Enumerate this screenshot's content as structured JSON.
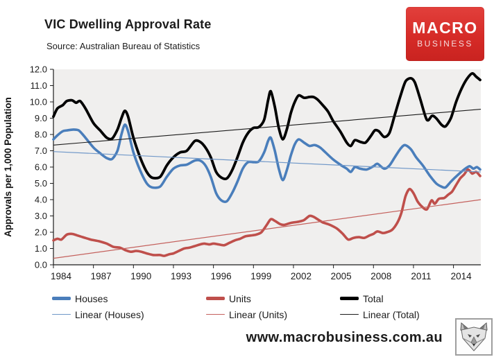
{
  "header": {
    "title": "VIC Dwelling Approval Rate",
    "source": "Source: Australian Bureau of Statistics"
  },
  "brand": {
    "line1": "MACRO",
    "line2": "BUSINESS",
    "background_color": "#d62b27",
    "text_color": "#ffffff"
  },
  "footer": {
    "url": "www.macrobusiness.com.au",
    "logo": "fox-head-logo"
  },
  "chart_data": {
    "type": "line",
    "title": "VIC Dwelling Approval Rate",
    "subtitle": "Source: Australian Bureau of Statistics",
    "xlabel": "",
    "ylabel": "Approvals per 1,000 Population",
    "ylim": [
      0,
      12
    ],
    "xlim": [
      1984,
      2016.05
    ],
    "grid": false,
    "plot_background": "#f0efee",
    "axis_color": "#1b1b1b",
    "legend_position": "bottom",
    "y_tick_labels": [
      "12.0",
      "11.0",
      "10.0",
      "9.0",
      "8.0",
      "7.0",
      "6.0",
      "5.0",
      "4.0",
      "3.0",
      "2.0",
      "1.0",
      "0.0"
    ],
    "x_tick_years": [
      1984,
      1987,
      1990,
      1993,
      1996,
      1999,
      2002,
      2005,
      2008,
      2011,
      2014
    ],
    "x_tick_labels": [
      "1984",
      "1987",
      "1990",
      "1993",
      "1996",
      "1999",
      "2002",
      "2005",
      "2008",
      "2011",
      "2014"
    ],
    "series": [
      {
        "name": "Houses",
        "color": "#4a7ebb",
        "width": 3.6,
        "points": [
          [
            1984.0,
            7.7
          ],
          [
            1984.3,
            7.95
          ],
          [
            1984.7,
            8.2
          ],
          [
            1985.0,
            8.25
          ],
          [
            1985.5,
            8.3
          ],
          [
            1985.9,
            8.25
          ],
          [
            1986.3,
            7.9
          ],
          [
            1987.0,
            7.2
          ],
          [
            1987.5,
            6.85
          ],
          [
            1988.0,
            6.55
          ],
          [
            1988.4,
            6.5
          ],
          [
            1988.8,
            7.0
          ],
          [
            1989.1,
            8.0
          ],
          [
            1989.35,
            8.6
          ],
          [
            1989.6,
            8.2
          ],
          [
            1990.0,
            6.9
          ],
          [
            1990.5,
            5.8
          ],
          [
            1991.0,
            5.0
          ],
          [
            1991.4,
            4.75
          ],
          [
            1992.0,
            4.8
          ],
          [
            1992.5,
            5.4
          ],
          [
            1993.0,
            5.9
          ],
          [
            1993.5,
            6.1
          ],
          [
            1994.0,
            6.15
          ],
          [
            1994.6,
            6.4
          ],
          [
            1995.0,
            6.4
          ],
          [
            1995.4,
            6.1
          ],
          [
            1995.8,
            5.4
          ],
          [
            1996.2,
            4.4
          ],
          [
            1996.6,
            3.95
          ],
          [
            1997.0,
            3.9
          ],
          [
            1997.4,
            4.4
          ],
          [
            1997.8,
            5.1
          ],
          [
            1998.2,
            5.9
          ],
          [
            1998.6,
            6.3
          ],
          [
            1999.0,
            6.3
          ],
          [
            1999.4,
            6.35
          ],
          [
            1999.8,
            6.9
          ],
          [
            2000.1,
            7.6
          ],
          [
            2000.3,
            7.8
          ],
          [
            2000.6,
            7.0
          ],
          [
            2000.9,
            5.9
          ],
          [
            2001.2,
            5.2
          ],
          [
            2001.5,
            5.8
          ],
          [
            2001.8,
            6.7
          ],
          [
            2002.1,
            7.4
          ],
          [
            2002.4,
            7.7
          ],
          [
            2002.8,
            7.5
          ],
          [
            2003.2,
            7.3
          ],
          [
            2003.6,
            7.35
          ],
          [
            2004.0,
            7.2
          ],
          [
            2004.4,
            6.9
          ],
          [
            2005.0,
            6.45
          ],
          [
            2005.6,
            6.1
          ],
          [
            2006.0,
            5.9
          ],
          [
            2006.3,
            5.7
          ],
          [
            2006.6,
            6.0
          ],
          [
            2007.0,
            5.9
          ],
          [
            2007.5,
            5.85
          ],
          [
            2008.0,
            6.05
          ],
          [
            2008.3,
            6.2
          ],
          [
            2008.8,
            5.9
          ],
          [
            2009.2,
            6.1
          ],
          [
            2009.6,
            6.6
          ],
          [
            2010.0,
            7.1
          ],
          [
            2010.35,
            7.35
          ],
          [
            2010.8,
            7.1
          ],
          [
            2011.2,
            6.6
          ],
          [
            2011.7,
            6.1
          ],
          [
            2012.2,
            5.5
          ],
          [
            2012.7,
            5.0
          ],
          [
            2013.1,
            4.8
          ],
          [
            2013.4,
            4.75
          ],
          [
            2013.8,
            5.1
          ],
          [
            2014.3,
            5.5
          ],
          [
            2014.8,
            5.85
          ],
          [
            2015.2,
            6.05
          ],
          [
            2015.5,
            5.9
          ],
          [
            2015.75,
            6.0
          ],
          [
            2016.0,
            5.85
          ]
        ]
      },
      {
        "name": "Units",
        "color": "#bf4f4b",
        "width": 3.6,
        "points": [
          [
            1984.0,
            1.5
          ],
          [
            1984.3,
            1.6
          ],
          [
            1984.6,
            1.55
          ],
          [
            1985.0,
            1.85
          ],
          [
            1985.4,
            1.9
          ],
          [
            1985.8,
            1.8
          ],
          [
            1986.2,
            1.7
          ],
          [
            1986.8,
            1.55
          ],
          [
            1987.4,
            1.45
          ],
          [
            1988.0,
            1.3
          ],
          [
            1988.5,
            1.1
          ],
          [
            1989.0,
            1.05
          ],
          [
            1989.4,
            0.9
          ],
          [
            1989.8,
            0.8
          ],
          [
            1990.2,
            0.85
          ],
          [
            1990.6,
            0.8
          ],
          [
            1991.0,
            0.7
          ],
          [
            1991.5,
            0.6
          ],
          [
            1992.0,
            0.6
          ],
          [
            1992.3,
            0.55
          ],
          [
            1992.7,
            0.65
          ],
          [
            1993.0,
            0.7
          ],
          [
            1993.4,
            0.85
          ],
          [
            1993.8,
            1.0
          ],
          [
            1994.2,
            1.05
          ],
          [
            1994.6,
            1.15
          ],
          [
            1995.0,
            1.25
          ],
          [
            1995.3,
            1.3
          ],
          [
            1995.7,
            1.25
          ],
          [
            1996.0,
            1.3
          ],
          [
            1996.4,
            1.25
          ],
          [
            1996.8,
            1.2
          ],
          [
            1997.2,
            1.35
          ],
          [
            1997.6,
            1.5
          ],
          [
            1998.0,
            1.6
          ],
          [
            1998.4,
            1.75
          ],
          [
            1998.8,
            1.8
          ],
          [
            1999.2,
            1.85
          ],
          [
            1999.6,
            2.0
          ],
          [
            2000.0,
            2.45
          ],
          [
            2000.3,
            2.8
          ],
          [
            2000.6,
            2.7
          ],
          [
            2001.0,
            2.5
          ],
          [
            2001.3,
            2.45
          ],
          [
            2001.7,
            2.55
          ],
          [
            2002.0,
            2.6
          ],
          [
            2002.4,
            2.65
          ],
          [
            2002.8,
            2.75
          ],
          [
            2003.2,
            3.0
          ],
          [
            2003.5,
            2.95
          ],
          [
            2003.8,
            2.8
          ],
          [
            2004.2,
            2.6
          ],
          [
            2004.6,
            2.5
          ],
          [
            2005.0,
            2.35
          ],
          [
            2005.3,
            2.2
          ],
          [
            2005.7,
            1.9
          ],
          [
            2006.1,
            1.55
          ],
          [
            2006.5,
            1.65
          ],
          [
            2006.9,
            1.7
          ],
          [
            2007.3,
            1.65
          ],
          [
            2007.7,
            1.8
          ],
          [
            2008.0,
            1.9
          ],
          [
            2008.3,
            2.05
          ],
          [
            2008.7,
            1.95
          ],
          [
            2009.0,
            2.0
          ],
          [
            2009.4,
            2.15
          ],
          [
            2009.8,
            2.6
          ],
          [
            2010.1,
            3.2
          ],
          [
            2010.4,
            4.2
          ],
          [
            2010.7,
            4.65
          ],
          [
            2011.0,
            4.4
          ],
          [
            2011.3,
            3.9
          ],
          [
            2011.6,
            3.6
          ],
          [
            2012.0,
            3.4
          ],
          [
            2012.35,
            3.95
          ],
          [
            2012.6,
            3.75
          ],
          [
            2012.9,
            4.05
          ],
          [
            2013.3,
            4.1
          ],
          [
            2013.6,
            4.3
          ],
          [
            2013.9,
            4.5
          ],
          [
            2014.2,
            4.9
          ],
          [
            2014.5,
            5.3
          ],
          [
            2014.8,
            5.55
          ],
          [
            2015.1,
            5.85
          ],
          [
            2015.4,
            5.6
          ],
          [
            2015.7,
            5.7
          ],
          [
            2016.0,
            5.45
          ]
        ]
      },
      {
        "name": "Total",
        "color": "#000000",
        "width": 3.8,
        "points": [
          [
            1984.0,
            9.1
          ],
          [
            1984.3,
            9.6
          ],
          [
            1984.7,
            9.8
          ],
          [
            1985.0,
            10.05
          ],
          [
            1985.4,
            10.1
          ],
          [
            1985.7,
            9.95
          ],
          [
            1986.0,
            10.05
          ],
          [
            1986.4,
            9.6
          ],
          [
            1987.0,
            8.7
          ],
          [
            1987.5,
            8.25
          ],
          [
            1988.0,
            7.8
          ],
          [
            1988.4,
            7.75
          ],
          [
            1988.8,
            8.3
          ],
          [
            1989.1,
            9.0
          ],
          [
            1989.35,
            9.45
          ],
          [
            1989.6,
            9.1
          ],
          [
            1990.0,
            7.8
          ],
          [
            1990.5,
            6.6
          ],
          [
            1991.0,
            5.7
          ],
          [
            1991.4,
            5.35
          ],
          [
            1992.0,
            5.4
          ],
          [
            1992.5,
            6.1
          ],
          [
            1993.0,
            6.6
          ],
          [
            1993.5,
            6.9
          ],
          [
            1994.0,
            7.0
          ],
          [
            1994.6,
            7.6
          ],
          [
            1995.0,
            7.55
          ],
          [
            1995.4,
            7.2
          ],
          [
            1995.8,
            6.6
          ],
          [
            1996.2,
            5.7
          ],
          [
            1996.6,
            5.35
          ],
          [
            1997.0,
            5.3
          ],
          [
            1997.4,
            5.8
          ],
          [
            1997.8,
            6.6
          ],
          [
            1998.2,
            7.5
          ],
          [
            1998.6,
            8.1
          ],
          [
            1999.0,
            8.4
          ],
          [
            1999.4,
            8.45
          ],
          [
            1999.8,
            8.9
          ],
          [
            2000.1,
            10.1
          ],
          [
            2000.3,
            10.65
          ],
          [
            2000.6,
            9.7
          ],
          [
            2000.9,
            8.4
          ],
          [
            2001.2,
            7.7
          ],
          [
            2001.5,
            8.3
          ],
          [
            2001.8,
            9.3
          ],
          [
            2002.1,
            10.0
          ],
          [
            2002.4,
            10.4
          ],
          [
            2002.8,
            10.25
          ],
          [
            2003.2,
            10.3
          ],
          [
            2003.5,
            10.3
          ],
          [
            2003.8,
            10.15
          ],
          [
            2004.2,
            9.8
          ],
          [
            2004.6,
            9.4
          ],
          [
            2005.0,
            8.8
          ],
          [
            2005.5,
            8.2
          ],
          [
            2006.0,
            7.5
          ],
          [
            2006.3,
            7.3
          ],
          [
            2006.6,
            7.65
          ],
          [
            2007.0,
            7.55
          ],
          [
            2007.4,
            7.5
          ],
          [
            2007.8,
            7.9
          ],
          [
            2008.1,
            8.25
          ],
          [
            2008.4,
            8.2
          ],
          [
            2008.8,
            7.85
          ],
          [
            2009.2,
            8.1
          ],
          [
            2009.6,
            9.2
          ],
          [
            2010.0,
            10.3
          ],
          [
            2010.4,
            11.25
          ],
          [
            2010.8,
            11.45
          ],
          [
            2011.1,
            11.2
          ],
          [
            2011.5,
            10.2
          ],
          [
            2012.0,
            8.9
          ],
          [
            2012.4,
            9.15
          ],
          [
            2012.7,
            9.0
          ],
          [
            2013.1,
            8.6
          ],
          [
            2013.4,
            8.5
          ],
          [
            2013.8,
            9.0
          ],
          [
            2014.2,
            10.0
          ],
          [
            2014.6,
            10.8
          ],
          [
            2015.0,
            11.4
          ],
          [
            2015.4,
            11.75
          ],
          [
            2015.7,
            11.55
          ],
          [
            2016.0,
            11.35
          ]
        ]
      }
    ],
    "trendlines": [
      {
        "name": "Linear (Houses)",
        "color": "#6f97c8",
        "width": 1.2,
        "points": [
          [
            1984,
            6.95
          ],
          [
            2016.05,
            5.7
          ]
        ]
      },
      {
        "name": "Linear (Units)",
        "color": "#c4605c",
        "width": 1.2,
        "points": [
          [
            1984,
            0.4
          ],
          [
            2016.05,
            4.0
          ]
        ]
      },
      {
        "name": "Linear (Total)",
        "color": "#1a1a1a",
        "width": 1.1,
        "points": [
          [
            1984,
            7.35
          ],
          [
            2016.05,
            9.55
          ]
        ]
      }
    ]
  }
}
